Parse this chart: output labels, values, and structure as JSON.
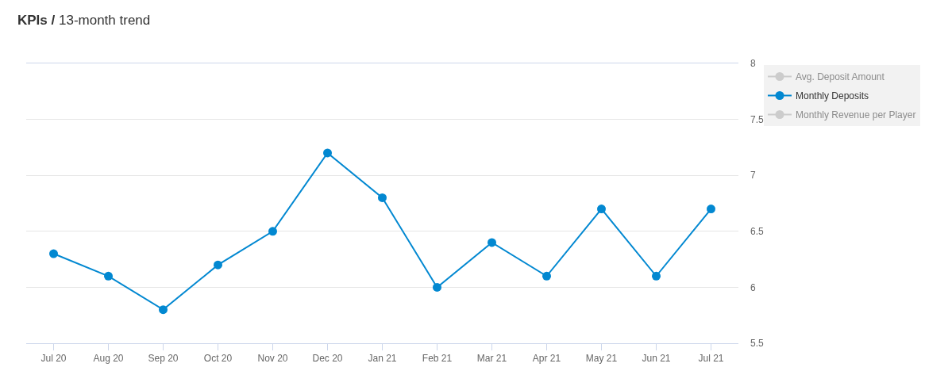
{
  "chart_data": {
    "type": "line",
    "title": "KPIs /",
    "subtitle": "13-month trend",
    "categories": [
      "Jul 20",
      "Aug 20",
      "Sep 20",
      "Oct 20",
      "Nov 20",
      "Dec 20",
      "Jan 21",
      "Feb 21",
      "Mar 21",
      "Apr 21",
      "May 21",
      "Jun 21",
      "Jul 21"
    ],
    "series": [
      {
        "name": "Avg. Deposit Amount",
        "color": "#cccccc",
        "values": [
          null,
          null,
          null,
          null,
          null,
          null,
          null,
          null,
          null,
          null,
          null,
          null,
          null
        ]
      },
      {
        "name": "Monthly Deposits",
        "color": "#0288d1",
        "values": [
          6.3,
          6.1,
          5.8,
          6.2,
          6.5,
          7.2,
          6.8,
          6.0,
          6.4,
          6.1,
          6.7,
          6.1,
          6.7
        ]
      },
      {
        "name": "Monthly Revenue per Player",
        "color": "#cccccc",
        "values": [
          null,
          null,
          null,
          null,
          null,
          null,
          null,
          null,
          null,
          null,
          null,
          null,
          null
        ]
      }
    ],
    "ylim": [
      5.5,
      8
    ],
    "yticks": [
      5.5,
      6,
      6.5,
      7,
      7.5,
      8
    ],
    "grid": "y",
    "legend": "top right",
    "marker": "circle",
    "line_style": "solid"
  }
}
